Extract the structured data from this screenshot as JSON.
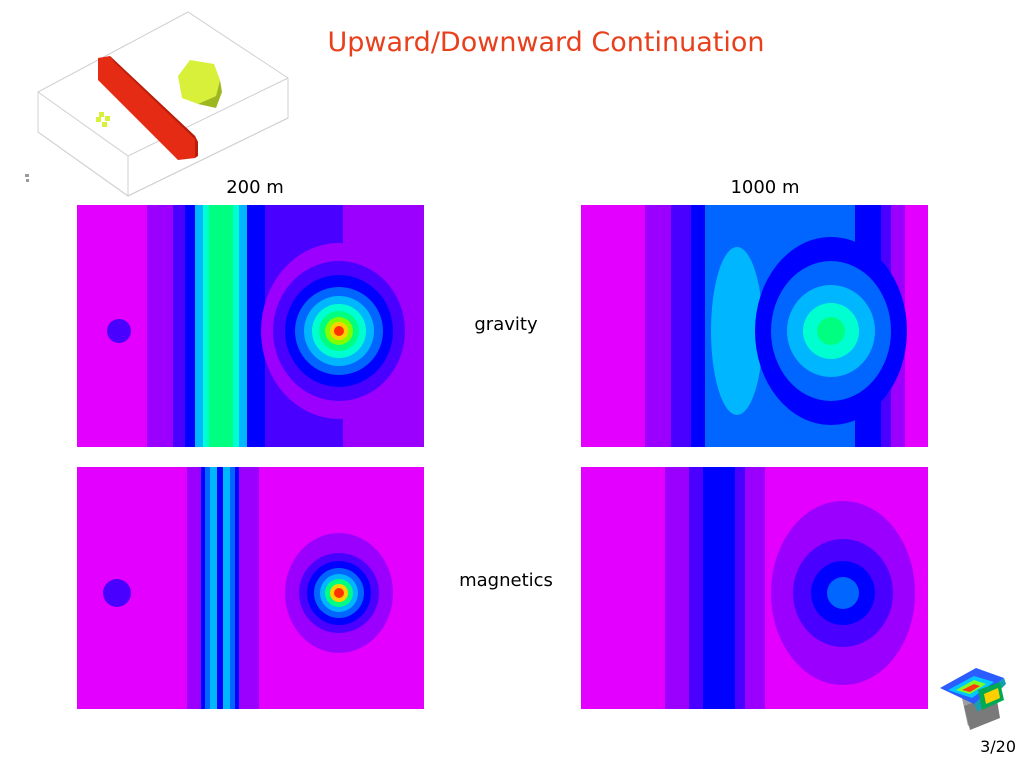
{
  "slide": {
    "title": "Upward/Downward Continuation",
    "page": "3/20"
  },
  "columns": {
    "left_label": "200 m",
    "right_label": "1000 m"
  },
  "rows": {
    "gravity_label": "gravity",
    "magnetics_label": "magnetics"
  },
  "colors": {
    "title": "#e8401c",
    "ramp_low_to_high": [
      "#e300ff",
      "#9b00ff",
      "#4a00ff",
      "#0000ff",
      "#0066ff",
      "#00b7ff",
      "#00ffd0",
      "#00ff80",
      "#80ff00",
      "#ffd000",
      "#ff3300"
    ],
    "model_slab": "#e52b13",
    "model_body": "#d8f03a",
    "model_box": "#d0d0d0"
  },
  "icons": {
    "model_figure": "3d-geological-model-figure",
    "corner_logo": "colored-layered-surfaces-logo"
  }
}
